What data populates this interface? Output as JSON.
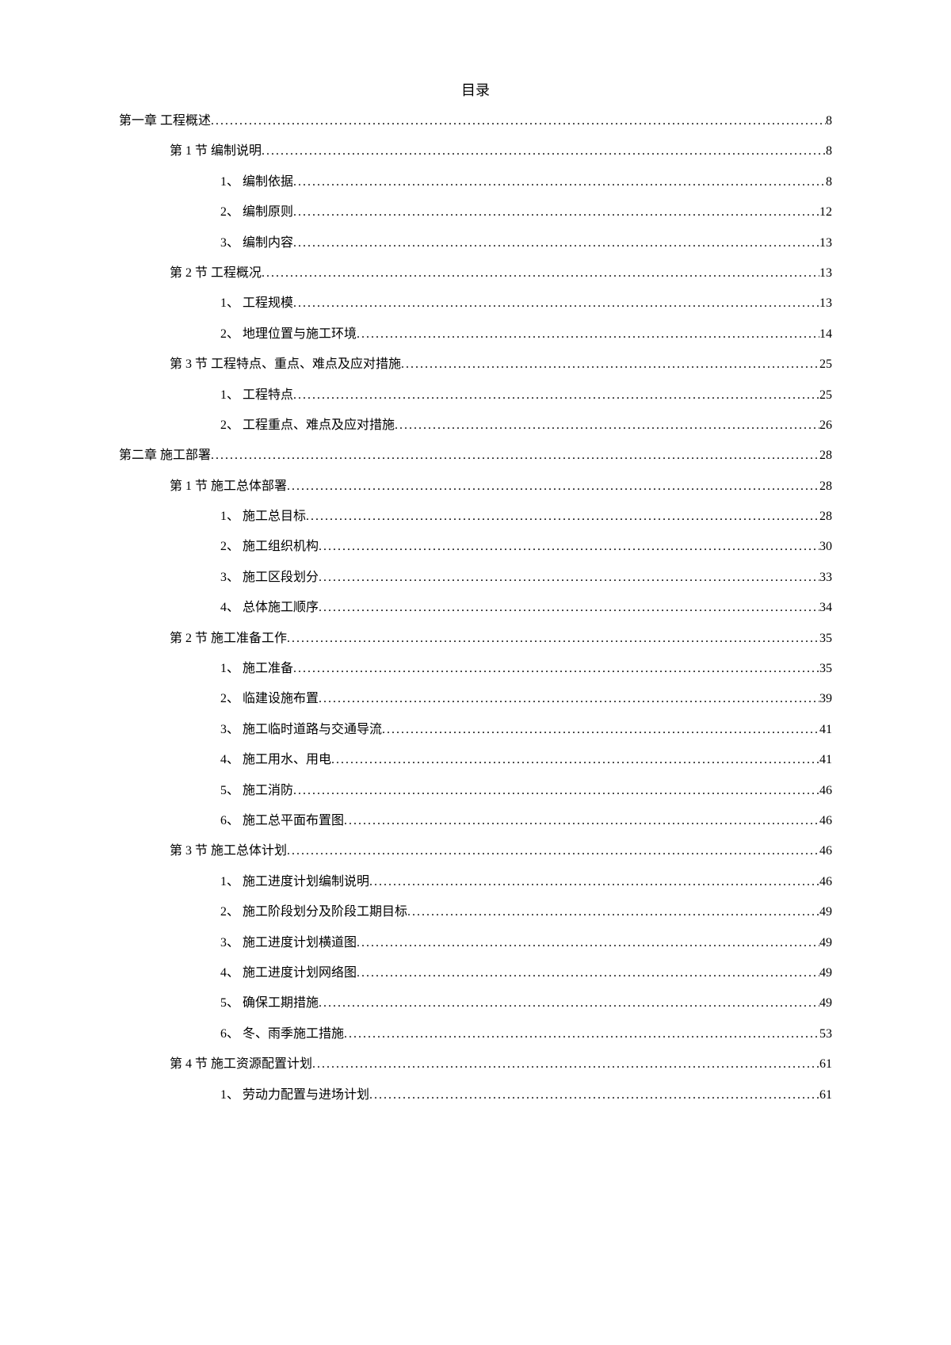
{
  "title": "目录",
  "entries": [
    {
      "indent": 0,
      "label": "第一章 工程概述",
      "page": "8"
    },
    {
      "indent": 1,
      "label": "第 1 节 编制说明",
      "page": "8"
    },
    {
      "indent": 2,
      "label": "1、 编制依据",
      "page": "8"
    },
    {
      "indent": 2,
      "label": "2、 编制原则",
      "page": "12"
    },
    {
      "indent": 2,
      "label": "3、 编制内容",
      "page": "13"
    },
    {
      "indent": 1,
      "label": "第 2 节 工程概况",
      "page": "13"
    },
    {
      "indent": 2,
      "label": "1、 工程规模",
      "page": "13"
    },
    {
      "indent": 2,
      "label": "2、 地理位置与施工环境",
      "page": "14"
    },
    {
      "indent": 1,
      "label": "第 3 节 工程特点、重点、难点及应对措施",
      "page": "25"
    },
    {
      "indent": 2,
      "label": "1、 工程特点",
      "page": "25"
    },
    {
      "indent": 2,
      "label": "2、 工程重点、难点及应对措施",
      "page": "26"
    },
    {
      "indent": 0,
      "label": "第二章 施工部署",
      "page": "28"
    },
    {
      "indent": 1,
      "label": "第 1 节 施工总体部署",
      "page": "28"
    },
    {
      "indent": 2,
      "label": "1、 施工总目标",
      "page": "28"
    },
    {
      "indent": 2,
      "label": "2、 施工组织机构",
      "page": "30"
    },
    {
      "indent": 2,
      "label": "3、 施工区段划分",
      "page": "33"
    },
    {
      "indent": 2,
      "label": "4、 总体施工顺序",
      "page": "34"
    },
    {
      "indent": 1,
      "label": "第 2 节 施工准备工作",
      "page": "35"
    },
    {
      "indent": 2,
      "label": "1、 施工准备",
      "page": "35"
    },
    {
      "indent": 2,
      "label": "2、 临建设施布置",
      "page": "39"
    },
    {
      "indent": 2,
      "label": "3、 施工临时道路与交通导流",
      "page": "41"
    },
    {
      "indent": 2,
      "label": "4、 施工用水、用电",
      "page": "41"
    },
    {
      "indent": 2,
      "label": "5、 施工消防",
      "page": "46"
    },
    {
      "indent": 2,
      "label": "6、 施工总平面布置图",
      "page": "46"
    },
    {
      "indent": 1,
      "label": "第 3 节 施工总体计划",
      "page": "46"
    },
    {
      "indent": 2,
      "label": "1、 施工进度计划编制说明",
      "page": "46"
    },
    {
      "indent": 2,
      "label": "2、 施工阶段划分及阶段工期目标",
      "page": "49"
    },
    {
      "indent": 2,
      "label": "3、 施工进度计划横道图",
      "page": "49"
    },
    {
      "indent": 2,
      "label": "4、 施工进度计划网络图",
      "page": "49"
    },
    {
      "indent": 2,
      "label": "5、 确保工期措施",
      "page": "49"
    },
    {
      "indent": 2,
      "label": "6、 冬、雨季施工措施",
      "page": "53"
    },
    {
      "indent": 1,
      "label": "第 4 节 施工资源配置计划",
      "page": "61"
    },
    {
      "indent": 2,
      "label": "1、 劳动力配置与进场计划",
      "page": "61"
    }
  ]
}
